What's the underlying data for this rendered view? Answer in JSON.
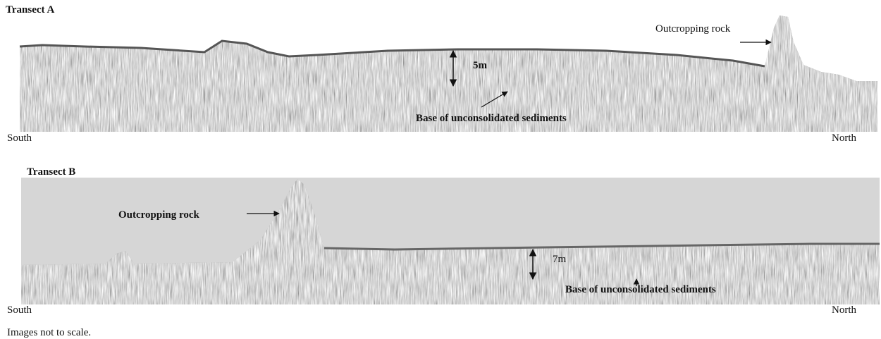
{
  "transects": [
    {
      "title": "Transect A",
      "rock_label": "Outcropping rock",
      "thickness": "5m",
      "base_label": "Base of unconsolidated sediments",
      "left": "South",
      "right": "North"
    },
    {
      "title": "Transect B",
      "rock_label": "Outcropping rock",
      "thickness": "7m",
      "base_label": "Base of unconsolidated sediments",
      "left": "South",
      "right": "North"
    }
  ],
  "footnote": "Images not to scale."
}
